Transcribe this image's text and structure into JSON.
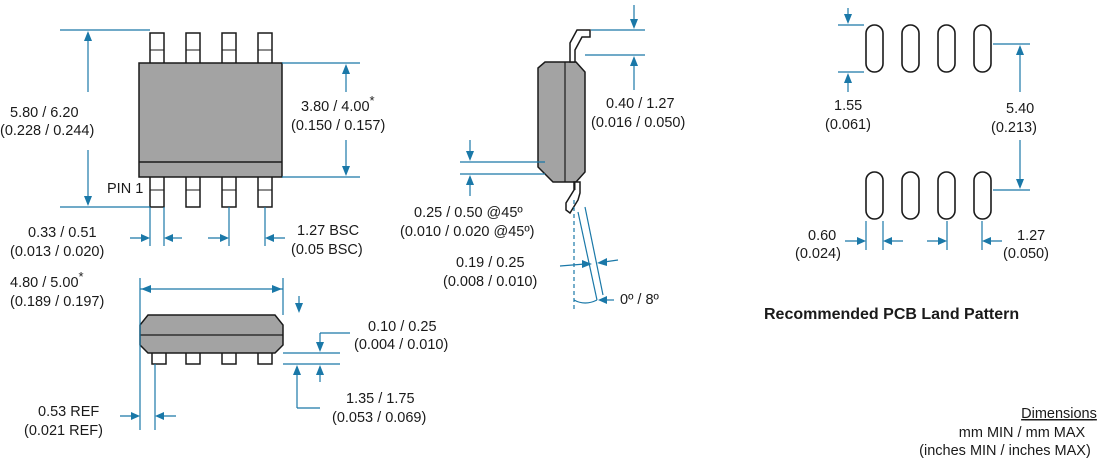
{
  "top_view": {
    "height_mm": "5.80 / 6.20",
    "height_in": "(0.228 / 0.244)",
    "width_mm": "3.80 / 4.00",
    "width_star": "*",
    "width_in": "(0.150 / 0.157)",
    "pin1_label": "PIN 1",
    "lead_width_mm": "0.33 / 0.51",
    "lead_width_in": "(0.013 / 0.020)",
    "pitch_mm": "1.27 BSC",
    "pitch_in": "(0.05 BSC)"
  },
  "side_view": {
    "length_mm": "4.80 / 5.00",
    "length_star": "*",
    "length_in": "(0.189 / 0.197)",
    "standoff_mm": "0.10 / 0.25",
    "standoff_in": "(0.004 / 0.010)",
    "height_mm": "1.35 / 1.75",
    "height_in": "(0.053 / 0.069)",
    "ref_mm": "0.53 REF",
    "ref_in": "(0.021 REF)"
  },
  "end_view": {
    "foot_mm": "0.40 / 1.27",
    "foot_in": "(0.016 / 0.050)",
    "chamfer_mm": "0.25 / 0.50 @45º",
    "chamfer_in": "(0.010 / 0.020 @45º)",
    "lead_thk_mm": "0.19 / 0.25",
    "lead_thk_in": "(0.008 / 0.010)",
    "angle": "0º / 8º"
  },
  "land_pattern": {
    "title": "Recommended PCB Land Pattern",
    "pad_len_mm": "1.55",
    "pad_len_in": "(0.061)",
    "span_mm": "5.40",
    "span_in": "(0.213)",
    "pad_w_mm": "0.60",
    "pad_w_in": "(0.024)",
    "pitch_mm": "1.27",
    "pitch_in": "(0.050)"
  },
  "legend": {
    "heading": "Dimensions",
    "line1": "mm MIN / mm MAX",
    "line2": "(inches MIN / inches MAX)"
  },
  "colors": {
    "dimension_line": "#1a78a8",
    "body_fill": "#a3a3a3",
    "outline": "#1a1a1a"
  }
}
